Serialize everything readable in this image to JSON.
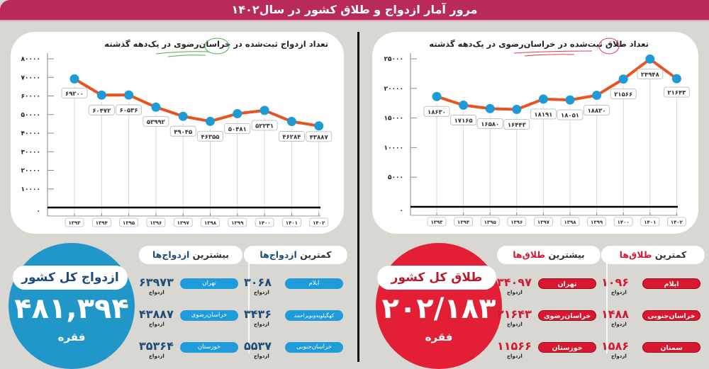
{
  "header": {
    "title": "مرور آمار ازدواج و طلاق کشور در سال۱۴۰۲"
  },
  "colors": {
    "header": "#B72A5A",
    "background": "#D9D7D2",
    "line": "#E8531F",
    "marker": "#1C9BD6",
    "marriage_accent": "#2196C9",
    "divorce_accent": "#E21F35",
    "title_marriage_circle": "#4CAF50",
    "title_divorce_circle": "#E53950"
  },
  "chart_data": [
    {
      "type": "line",
      "title": "تعداد ازدواج ثبت‌شده در خراسان‌رضوی در یک‌دهه گذشته",
      "xlabel": "",
      "ylabel": "",
      "categories": [
        "۱۳۹۳",
        "۱۳۹۴",
        "۱۳۹۵",
        "۱۳۹۶",
        "۱۳۹۷",
        "۱۳۹۸",
        "۱۳۹۹",
        "۱۴۰۰",
        "۱۴۰۱",
        "۱۴۰۲"
      ],
      "values": [
        69200,
        60472,
        60536,
        53992,
        49045,
        46355,
        50481,
        52231,
        46284,
        43887
      ],
      "value_labels": [
        "۶۹۲۰۰",
        "۶۰۴۷۲",
        "۶۰۵۳۶",
        "۵۳۹۹۲",
        "۴۹۰۴۵",
        "۴۶۳۵۵",
        "۵۰۴۸۱",
        "۵۲۲۳۱",
        "۴۶۲۸۴",
        "۴۳۸۸۷"
      ],
      "yticks": [
        0,
        10000,
        20000,
        30000,
        40000,
        50000,
        60000,
        70000,
        80000
      ],
      "ytick_labels": [
        "۰",
        "۱۰۰۰۰",
        "۲۰۰۰۰",
        "۳۰۰۰۰",
        "۴۰۰۰۰",
        "۵۰۰۰۰",
        "۶۰۰۰۰",
        "۷۰۰۰۰",
        "۸۰۰۰۰"
      ],
      "ylim": [
        0,
        80000
      ],
      "grid": "vertical",
      "legend": "none"
    },
    {
      "type": "line",
      "title": "تعداد طلاق ثبت‌شده در خراسان‌رضوی در یک‌دهه گذشته",
      "xlabel": "",
      "ylabel": "",
      "categories": [
        "۱۳۹۳",
        "۱۳۹۴",
        "۱۳۹۵",
        "۱۳۹۶",
        "۱۳۹۷",
        "۱۳۹۸",
        "۱۳۹۹",
        "۱۴۰۰",
        "۱۴۰۱",
        "۱۴۰۲"
      ],
      "values": [
        18630,
        17165,
        16580,
        16443,
        18191,
        18051,
        18830,
        21566,
        24948,
        21643
      ],
      "value_labels": [
        "۱۸۶۳۰",
        "۱۷۱۶۵",
        "۱۶۵۸۰",
        "۱۶۴۴۳",
        "۱۸۱۹۱",
        "۱۸۰۵۱",
        "۱۸۸۳۰",
        "۲۱۵۶۶",
        "۲۴۹۴۸",
        "۲۱۶۴۳"
      ],
      "yticks": [
        0,
        5000,
        10000,
        15000,
        20000,
        25000
      ],
      "ytick_labels": [
        "۰",
        "۵۰۰۰",
        "۱۰۰۰۰",
        "۱۵۰۰۰",
        "۲۰۰۰۰",
        "۲۵۰۰۰"
      ],
      "ylim": [
        0,
        25000
      ],
      "grid": "vertical",
      "legend": "none"
    }
  ],
  "marriage": {
    "total": {
      "label": "ازدواج کل کشور",
      "value": "۴۸۱,۳۹۴",
      "unit": "فقره"
    },
    "most": {
      "heading_prefix": "بیشترین ",
      "heading_accent": "ازدواج‌ها",
      "items": [
        {
          "province": "تهران",
          "value": "۶۳۹۷۳",
          "unit": "ازدواج"
        },
        {
          "province": "خراسان‌رضوی",
          "value": "۴۳۸۸۷",
          "unit": "ازدواج"
        },
        {
          "province": "خوزستان",
          "value": "۳۵۳۶۴",
          "unit": "ازدواج"
        }
      ]
    },
    "least": {
      "heading_prefix": "کمترین ",
      "heading_accent": "ازدواج‌ها",
      "items": [
        {
          "province": "ایلام",
          "value": "۳۰۶۸",
          "unit": "ازدواج"
        },
        {
          "province": "کهگیلویه‌وبویراحمد",
          "value": "۳۴۳۶",
          "unit": "ازدواج"
        },
        {
          "province": "خراسان‌جنوبی",
          "value": "۵۵۳۷",
          "unit": "ازدواج"
        }
      ]
    }
  },
  "divorce": {
    "total": {
      "label": "طلاق کل کشور",
      "value": "۲۰۲/۱۸۳",
      "unit": "فقره"
    },
    "most": {
      "heading_prefix": "بیشترین ",
      "heading_accent": "طلاق‌ها",
      "items": [
        {
          "province": "تهران",
          "value": "۳۴۰۹۷",
          "unit": "ازدواج"
        },
        {
          "province": "خراسان‌رضوی",
          "value": "۲۱۶۴۳",
          "unit": "ازدواج"
        },
        {
          "province": "خوزستان",
          "value": "۱۱۵۶۶",
          "unit": "ازدواج"
        }
      ]
    },
    "least": {
      "heading_prefix": "کمترین ",
      "heading_accent": "طلاق‌ها",
      "items": [
        {
          "province": "ایلام",
          "value": "۱۰۹۶",
          "unit": "ازدواج"
        },
        {
          "province": "خراسان‌جنوبی",
          "value": "۱۴۸۸",
          "unit": "ازدواج"
        },
        {
          "province": "سمنان",
          "value": "۱۵۸۶",
          "unit": "ازدواج"
        }
      ]
    }
  }
}
